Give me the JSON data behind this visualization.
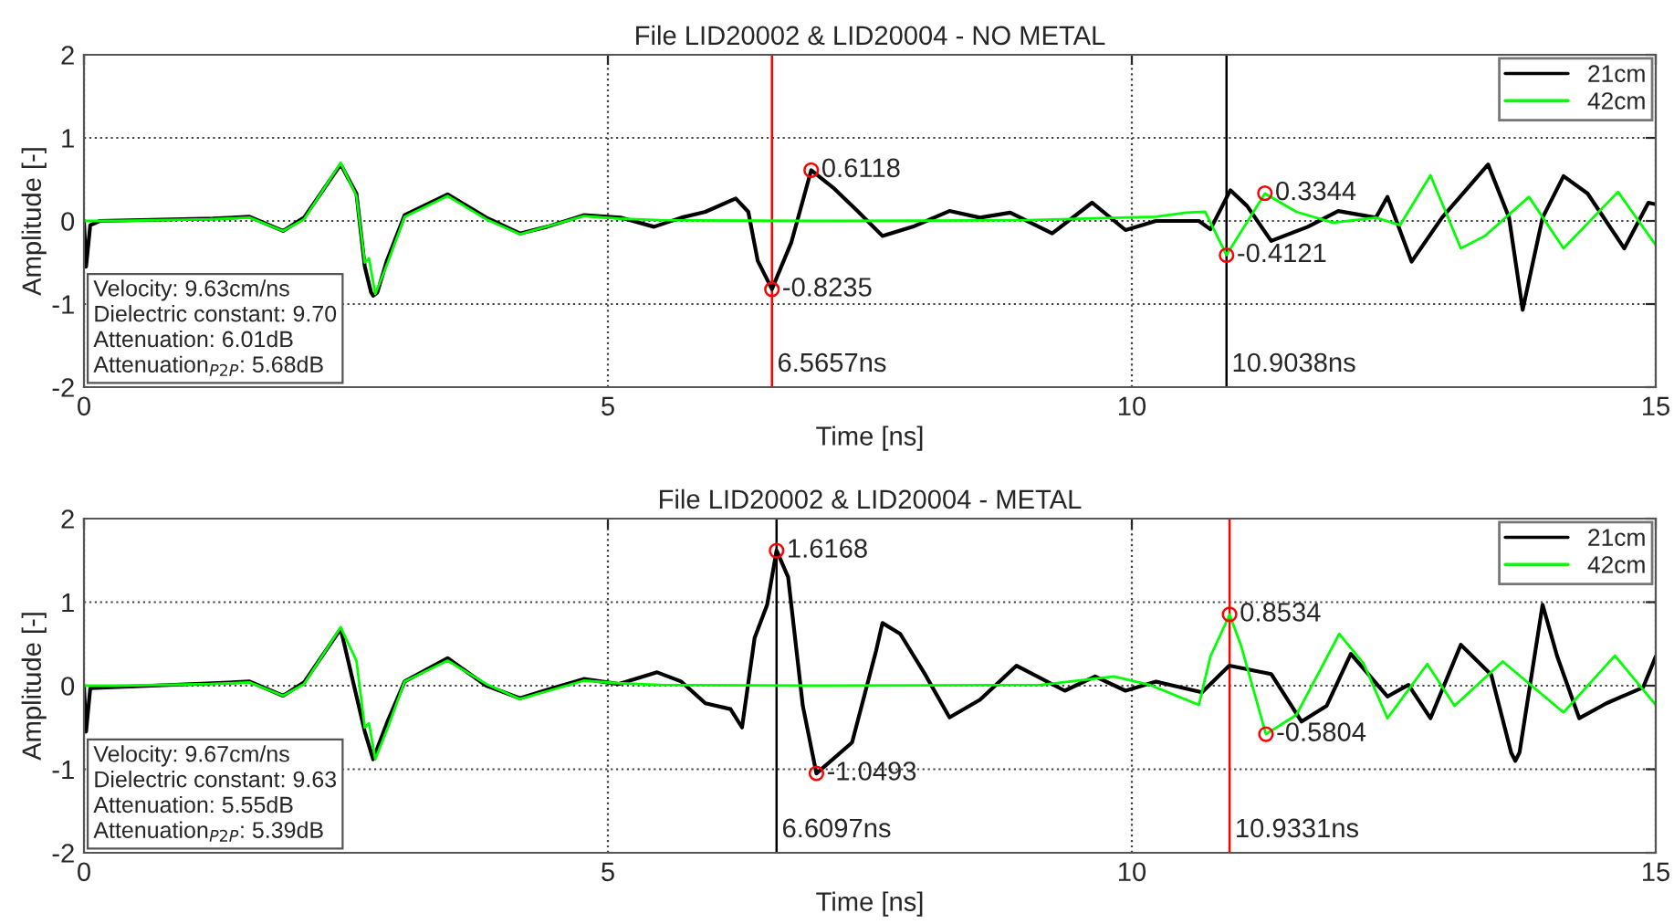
{
  "chart_data": [
    {
      "type": "line",
      "title": "File LID20002 & LID20004 - NO METAL",
      "xlabel": "Time [ns]",
      "ylabel": "Amplitude [-]",
      "xlim": [
        0,
        15
      ],
      "xticks": [
        0,
        5,
        10,
        15
      ],
      "ylim": [
        -2,
        2
      ],
      "yticks": [
        -2,
        -1,
        0,
        1,
        2
      ],
      "grid": true,
      "legend": "top right",
      "series": [
        {
          "name": "21cm",
          "color": "#000000",
          "x": [
            0,
            0.02,
            0.06,
            0.15,
            1.23,
            1.58,
            1.9,
            2.1,
            2.45,
            2.6,
            2.68,
            2.74,
            2.76,
            2.8,
            2.89,
            3.06,
            3.47,
            3.84,
            4.16,
            4.42,
            4.77,
            5.12,
            5.44,
            5.7,
            5.93,
            6.22,
            6.34,
            6.43,
            6.5657,
            6.75,
            6.94,
            7.15,
            7.39,
            7.62,
            7.91,
            8.26,
            8.55,
            8.84,
            9.24,
            9.62,
            9.94,
            10.23,
            10.64,
            10.75,
            10.94,
            11.1,
            11.33,
            11.68,
            11.97,
            12.33,
            12.44,
            12.67,
            12.96,
            13.4,
            13.6,
            13.73,
            13.92,
            14.12,
            14.35,
            14.7,
            14.93,
            15
          ],
          "values": [
            0,
            -0.55,
            -0.05,
            0,
            0.03,
            0.05,
            -0.12,
            0.04,
            0.68,
            0.33,
            -0.55,
            -0.86,
            -0.9,
            -0.86,
            -0.48,
            0.07,
            0.32,
            0.04,
            -0.15,
            -0.07,
            0.07,
            0.04,
            -0.07,
            0.04,
            0.11,
            0.27,
            0.11,
            -0.48,
            -0.82,
            -0.26,
            0.61,
            0.4,
            0.11,
            -0.18,
            -0.07,
            0.12,
            0.04,
            0.1,
            -0.15,
            0.22,
            -0.11,
            0,
            0,
            -0.1,
            0.37,
            0.18,
            -0.24,
            -0.07,
            0.12,
            0.04,
            0.29,
            -0.49,
            0.04,
            0.68,
            0.04,
            -1.07,
            0.04,
            0.54,
            0.33,
            -0.33,
            0.22,
            0.2
          ]
        },
        {
          "name": "42cm",
          "color": "#00ff00",
          "x": [
            0,
            0.3,
            1.2,
            1.58,
            1.9,
            2.1,
            2.45,
            2.6,
            2.68,
            2.72,
            2.78,
            2.9,
            3.06,
            3.47,
            3.84,
            4.16,
            4.77,
            5.1,
            5.5,
            7.0,
            9.0,
            10.23,
            10.52,
            10.7,
            10.9038,
            11.27,
            11.57,
            11.92,
            12.33,
            12.56,
            12.85,
            13.14,
            13.37,
            13.79,
            14.12,
            14.64,
            15
          ],
          "values": [
            0,
            0,
            0.02,
            0.04,
            -0.12,
            0.02,
            0.7,
            0.3,
            -0.5,
            -0.45,
            -0.88,
            -0.5,
            0.05,
            0.3,
            0.02,
            -0.16,
            0.06,
            0.03,
            0.01,
            0.0,
            0.01,
            0.05,
            0.1,
            0.11,
            -0.41,
            0.33,
            0.11,
            -0.02,
            0.04,
            -0.05,
            0.55,
            -0.33,
            -0.18,
            0.29,
            -0.33,
            0.35,
            -0.29
          ]
        },
        {
          "type": "scatter",
          "color": "#ff0000",
          "marker": "circle",
          "x": [
            6.5657,
            6.94,
            10.9038,
            11.27
          ],
          "values": [
            -0.8235,
            0.6118,
            -0.4121,
            0.3344
          ],
          "value_labels": [
            "-0.8235",
            "0.6118",
            "-0.4121",
            "0.3344"
          ]
        }
      ],
      "ref_lines": [
        {
          "axis": "x",
          "value": 6.5657,
          "label": "6.5657ns",
          "color": "#ff0000"
        },
        {
          "axis": "x",
          "value": 10.9038,
          "label": "10.9038ns",
          "color": "#000000"
        }
      ],
      "annotations": [
        "Velocity: 9.63cm/ns",
        "Dielectric constant: 9.70",
        "Attenuation: 6.01dB",
        "Attenuation$_{P2P}$: 5.68dB"
      ]
    },
    {
      "type": "line",
      "title": "File LID20002 & LID20004 - METAL",
      "xlabel": "Time [ns]",
      "ylabel": "Amplitude [-]",
      "xlim": [
        0,
        15
      ],
      "xticks": [
        0,
        5,
        10,
        15
      ],
      "ylim": [
        -2,
        2
      ],
      "yticks": [
        -2,
        -1,
        0,
        1,
        2
      ],
      "grid": true,
      "legend": "top right",
      "series": [
        {
          "name": "21cm",
          "color": "#000000",
          "x": [
            0,
            0.02,
            0.06,
            1.23,
            1.58,
            1.9,
            2.1,
            2.45,
            2.68,
            2.76,
            2.89,
            3.06,
            3.47,
            3.84,
            4.16,
            4.42,
            4.77,
            5.1,
            5.47,
            5.7,
            5.93,
            6.17,
            6.28,
            6.4,
            6.52,
            6.6097,
            6.72,
            6.86,
            6.99,
            7.33,
            7.56,
            7.62,
            7.79,
            8.03,
            8.26,
            8.55,
            8.9,
            9.36,
            9.65,
            9.94,
            10.23,
            10.67,
            10.93,
            11.33,
            11.62,
            11.86,
            12.09,
            12.44,
            12.64,
            12.85,
            13.14,
            13.43,
            13.62,
            13.66,
            13.7,
            13.92,
            14.06,
            14.27,
            14.53,
            14.88,
            15
          ],
          "values": [
            0,
            -0.55,
            -0.03,
            0.03,
            0.05,
            -0.12,
            0.04,
            0.68,
            -0.55,
            -0.88,
            -0.45,
            0.05,
            0.33,
            0,
            -0.15,
            -0.05,
            0.08,
            0.02,
            0.16,
            0.05,
            -0.21,
            -0.28,
            -0.5,
            0.57,
            0.97,
            1.62,
            1.3,
            -0.24,
            -1.05,
            -0.68,
            0.42,
            0.75,
            0.62,
            0.13,
            -0.38,
            -0.17,
            0.24,
            -0.06,
            0.11,
            -0.06,
            0.05,
            -0.08,
            0.24,
            0.14,
            -0.43,
            -0.24,
            0.38,
            -0.13,
            0.01,
            -0.39,
            0.49,
            0.13,
            -0.8,
            -0.9,
            -0.8,
            0.97,
            0.35,
            -0.39,
            -0.21,
            -0.02,
            0.35
          ]
        },
        {
          "name": "42cm",
          "color": "#00ff00",
          "x": [
            0,
            0.3,
            1.2,
            1.58,
            1.9,
            2.1,
            2.45,
            2.6,
            2.68,
            2.72,
            2.78,
            2.9,
            3.06,
            3.47,
            3.84,
            4.16,
            4.77,
            5.1,
            5.5,
            7.0,
            9.13,
            9.83,
            10.17,
            10.64,
            10.75,
            10.9331,
            11.04,
            11.28,
            11.57,
            11.98,
            12.21,
            12.44,
            12.82,
            13.08,
            13.54,
            14.12,
            14.61,
            15
          ],
          "values": [
            0,
            0,
            0.02,
            0.04,
            -0.12,
            0.02,
            0.7,
            0.3,
            -0.5,
            -0.45,
            -0.88,
            -0.5,
            0.05,
            0.3,
            0.02,
            -0.16,
            0.06,
            0.03,
            0.01,
            0.0,
            0.01,
            0.11,
            0.01,
            -0.23,
            0.35,
            0.85,
            0.49,
            -0.58,
            -0.35,
            0.62,
            0.27,
            -0.39,
            0.26,
            -0.24,
            0.29,
            -0.32,
            0.36,
            -0.23
          ]
        },
        {
          "type": "scatter",
          "color": "#ff0000",
          "marker": "circle",
          "x": [
            6.6097,
            6.99,
            10.9331,
            11.28
          ],
          "values": [
            1.6168,
            -1.0493,
            0.8534,
            -0.5804
          ],
          "value_labels": [
            "1.6168",
            "-1.0493",
            "0.8534",
            "-0.5804"
          ]
        }
      ],
      "ref_lines": [
        {
          "axis": "x",
          "value": 6.6097,
          "label": "6.6097ns",
          "color": "#000000"
        },
        {
          "axis": "x",
          "value": 10.9331,
          "label": "10.9331ns",
          "color": "#ff0000"
        }
      ],
      "annotations": [
        "Velocity: 9.67cm/ns",
        "Dielectric constant: 9.63",
        "Attenuation: 5.55dB",
        "Attenuation$_{P2P}$: 5.39dB"
      ]
    }
  ]
}
